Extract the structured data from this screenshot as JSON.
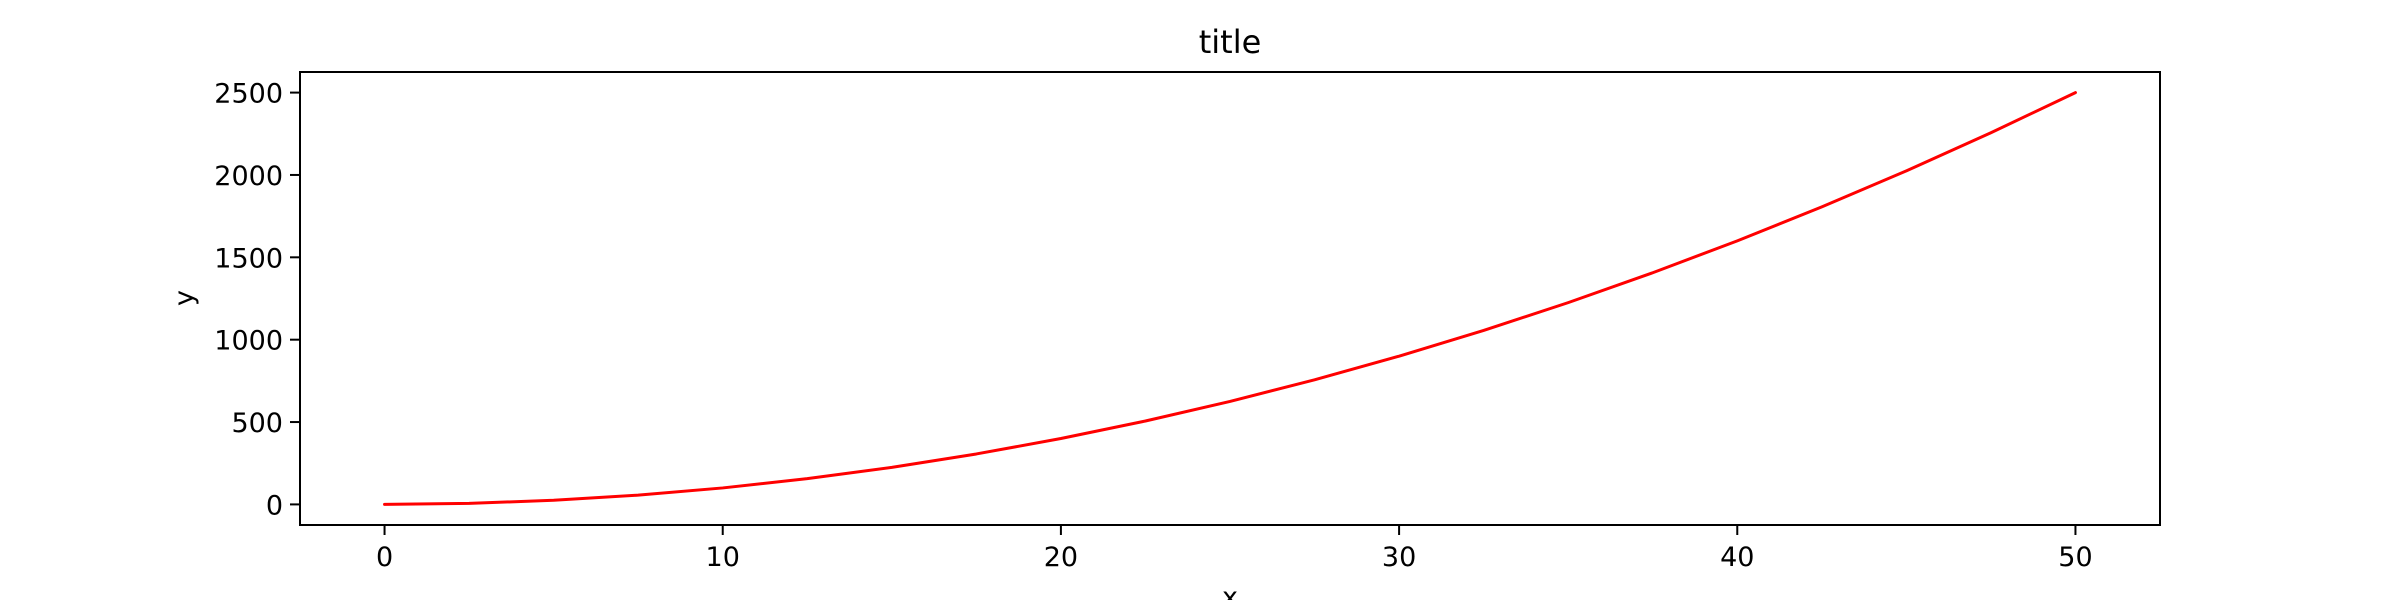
{
  "chart_data": {
    "type": "line",
    "title": "title",
    "xlabel": "x",
    "ylabel": "y",
    "xlim": [
      -2.5,
      52.5
    ],
    "ylim": [
      -125,
      2625
    ],
    "xticks": [
      0,
      10,
      20,
      30,
      40,
      50
    ],
    "yticks": [
      0,
      500,
      1000,
      1500,
      2000,
      2500
    ],
    "grid": false,
    "legend": "none",
    "series": [
      {
        "color": "#ff0000",
        "x": [
          0,
          2.5,
          5,
          7.5,
          10,
          12.5,
          15,
          17.5,
          20,
          22.5,
          25,
          27.5,
          30,
          32.5,
          35,
          37.5,
          40,
          42.5,
          45,
          47.5,
          50
        ],
        "values": [
          0,
          6.25,
          25,
          56.25,
          100,
          156.25,
          225,
          306.25,
          400,
          506.25,
          625,
          756.25,
          900,
          1056.25,
          1225,
          1406.25,
          1600,
          1806.25,
          2025,
          2256.25,
          2500
        ]
      }
    ]
  }
}
